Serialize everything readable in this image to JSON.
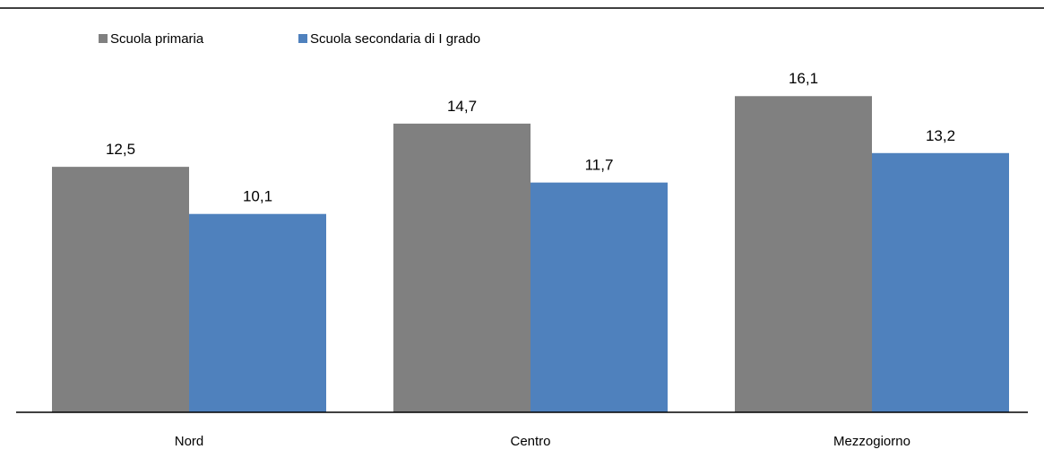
{
  "chart_data": {
    "type": "bar",
    "categories": [
      "Nord",
      "Centro",
      "Mezzogiorno"
    ],
    "series": [
      {
        "name": "Scuola primaria",
        "values": [
          12.5,
          14.7,
          16.1
        ],
        "labels": [
          "12,5",
          "14,7",
          "16,1"
        ],
        "color": "#808080"
      },
      {
        "name": "Scuola secondaria di I grado",
        "values": [
          10.1,
          11.7,
          13.2
        ],
        "labels": [
          "10,1",
          "11,7",
          "13,2"
        ],
        "color": "#4f81bd"
      }
    ],
    "title": "",
    "xlabel": "",
    "ylabel": "",
    "ylim": [
      0,
      17.8
    ],
    "grid": false,
    "legend": "top-left"
  }
}
